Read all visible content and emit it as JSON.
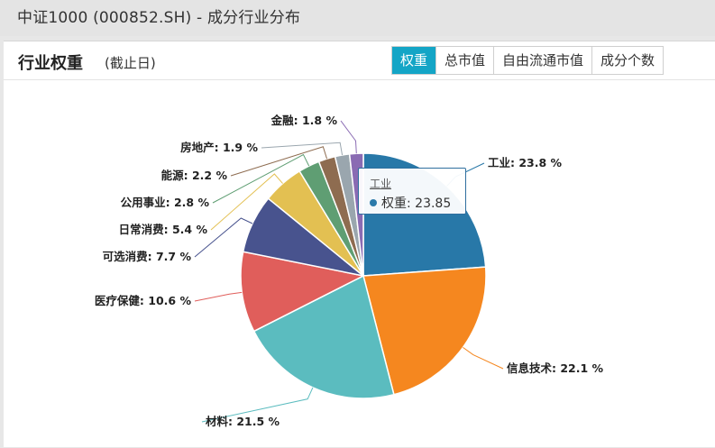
{
  "window": {
    "title": "中证1000 (000852.SH) - 成分行业分布"
  },
  "panel": {
    "title": "行业权重",
    "subtitle": "(截止日)",
    "tabs": [
      {
        "label": "权重",
        "active": true
      },
      {
        "label": "总市值",
        "active": false
      },
      {
        "label": "自由流通市值",
        "active": false
      },
      {
        "label": "成分个数",
        "active": false
      }
    ]
  },
  "tooltip": {
    "title": "工业",
    "metric": "权重",
    "value": "23.85",
    "color": "#2a7aaa"
  },
  "chart_data": {
    "type": "pie",
    "categories": [
      "工业",
      "信息技术",
      "材料",
      "医疗保健",
      "可选消费",
      "日常消费",
      "公用事业",
      "能源",
      "房地产",
      "金融"
    ],
    "values": [
      23.8,
      22.1,
      21.5,
      10.6,
      7.7,
      5.4,
      2.8,
      2.2,
      1.9,
      1.8
    ],
    "labels": [
      "工业: 23.8 %",
      "信息技术: 22.1 %",
      "材料: 21.5 %",
      "医疗保健: 10.6 %",
      "可选消费: 7.7 %",
      "日常消费: 5.4 %",
      "公用事业: 2.8 %",
      "能源: 2.2 %",
      "房地产: 1.9 %",
      "金融: 1.8 %"
    ],
    "colors": [
      "#2878a8",
      "#f5871f",
      "#5bbcbf",
      "#e05e5b",
      "#48538e",
      "#e3c052",
      "#5f9e73",
      "#8e6c50",
      "#9aa6ae",
      "#8a6bb3"
    ],
    "start_angle_deg": 0,
    "direction": "clockwise"
  }
}
